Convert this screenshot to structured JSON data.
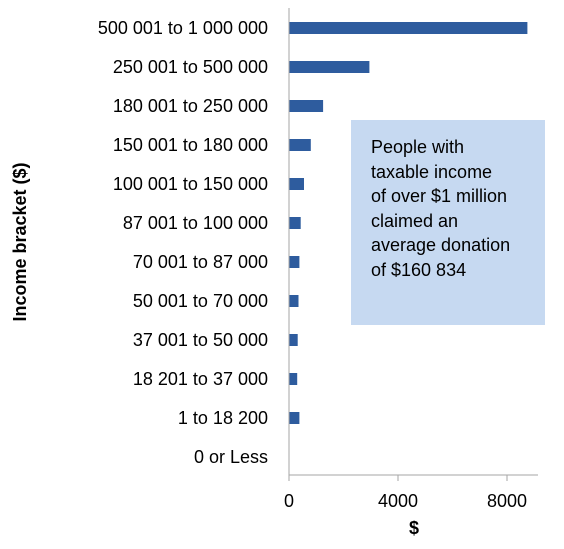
{
  "chart_data": {
    "type": "bar",
    "orientation": "horizontal",
    "categories": [
      "500 001 to 1 000 000",
      "250 001 to 500 000",
      "180 001 to 250 000",
      "150 001 to 180 000",
      "100 001 to 150 000",
      "87 001 to 100 000",
      "70 001 to 87 000",
      "50 001 to 70 000",
      "37 001 to 50 000",
      "18 201 to 37 000",
      "1 to 18 200",
      "0 or Less"
    ],
    "values": [
      8750,
      2950,
      1250,
      800,
      550,
      430,
      380,
      350,
      320,
      300,
      380,
      0
    ],
    "xlabel": "$",
    "ylabel": "Income bracket ($)",
    "xlim": [
      0,
      10000
    ],
    "xticks": [
      0,
      4000,
      8000
    ],
    "bar_color": "#2e5c9e",
    "grid": false,
    "annotation": {
      "lines": [
        "People with",
        "taxable income",
        "of over $1 million",
        "claimed an",
        "average donation",
        "of $160 834"
      ],
      "background": "#c6d9f1"
    }
  }
}
